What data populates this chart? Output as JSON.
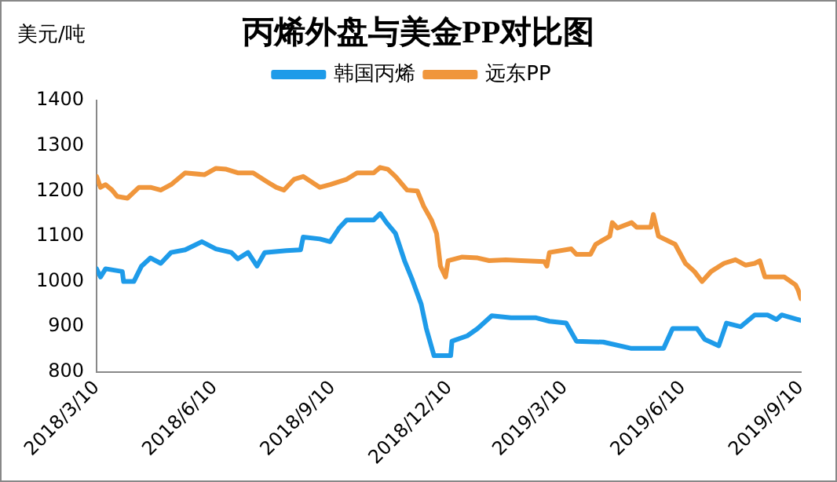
{
  "chart_data": {
    "type": "line",
    "title": "丙烯外盘与美金PP对比图",
    "ylabel": "美元/吨",
    "legend": "top",
    "grid": false,
    "marker": "none",
    "line_style": "solid",
    "xlim": [
      "2018-03-10",
      "2019-09-10"
    ],
    "xticks": [
      {
        "value": "2018-03-10",
        "label": "2018/3/10"
      },
      {
        "value": "2018-06-10",
        "label": "2018/6/10"
      },
      {
        "value": "2018-09-10",
        "label": "2018/9/10"
      },
      {
        "value": "2018-12-10",
        "label": "2018/12/10"
      },
      {
        "value": "2019-03-10",
        "label": "2019/3/10"
      },
      {
        "value": "2019-06-10",
        "label": "2019/6/10"
      },
      {
        "value": "2019-09-10",
        "label": "2019/9/10"
      }
    ],
    "ylim": [
      800,
      1400
    ],
    "yticks": [
      800,
      900,
      1000,
      1100,
      1200,
      1300,
      1400
    ],
    "series": [
      {
        "name": "韩国丙烯",
        "color": "#1e9be9",
        "x": [
          "2018-03-10",
          "2018-03-13",
          "2018-03-17",
          "2018-03-30",
          "2018-03-31",
          "2018-04-08",
          "2018-04-14",
          "2018-04-21",
          "2018-04-29",
          "2018-05-07",
          "2018-05-18",
          "2018-05-31",
          "2018-06-11",
          "2018-06-23",
          "2018-06-28",
          "2018-07-06",
          "2018-07-13",
          "2018-07-19",
          "2018-08-05",
          "2018-08-16",
          "2018-08-18",
          "2018-08-31",
          "2018-09-08",
          "2018-09-15",
          "2018-09-21",
          "2018-10-12",
          "2018-10-17",
          "2018-10-22",
          "2018-10-29",
          "2018-11-05",
          "2018-11-11",
          "2018-11-18",
          "2018-11-22",
          "2018-11-28",
          "2018-12-11",
          "2018-12-12",
          "2018-12-24",
          "2019-01-01",
          "2019-01-12",
          "2019-01-27",
          "2019-02-15",
          "2019-02-26",
          "2019-03-11",
          "2019-03-19",
          "2019-04-09",
          "2019-05-01",
          "2019-05-26",
          "2019-06-02",
          "2019-06-21",
          "2019-06-27",
          "2019-07-08",
          "2019-07-14",
          "2019-07-25",
          "2019-08-05",
          "2019-08-15",
          "2019-08-22",
          "2019-08-26",
          "2019-09-10"
        ],
        "values": [
          1028,
          1010,
          1028,
          1022,
          1000,
          1000,
          1034,
          1052,
          1040,
          1064,
          1070,
          1088,
          1072,
          1064,
          1050,
          1064,
          1034,
          1064,
          1068,
          1070,
          1098,
          1094,
          1088,
          1118,
          1136,
          1136,
          1150,
          1130,
          1106,
          1046,
          1004,
          950,
          896,
          836,
          836,
          868,
          880,
          896,
          924,
          920,
          920,
          912,
          908,
          868,
          866,
          852,
          852,
          896,
          896,
          872,
          858,
          908,
          900,
          926,
          926,
          916,
          926,
          914
        ]
      },
      {
        "name": "远东PP",
        "color": "#f0963c",
        "x": [
          "2018-03-10",
          "2018-03-13",
          "2018-03-17",
          "2018-03-22",
          "2018-03-26",
          "2018-04-03",
          "2018-04-12",
          "2018-04-21",
          "2018-04-29",
          "2018-05-07",
          "2018-05-18",
          "2018-06-02",
          "2018-06-11",
          "2018-06-19",
          "2018-06-28",
          "2018-07-10",
          "2018-07-21",
          "2018-07-28",
          "2018-08-03",
          "2018-08-11",
          "2018-08-18",
          "2018-08-31",
          "2018-09-08",
          "2018-09-21",
          "2018-09-29",
          "2018-10-12",
          "2018-10-17",
          "2018-10-23",
          "2018-10-29",
          "2018-11-07",
          "2018-11-15",
          "2018-11-20",
          "2018-11-26",
          "2018-11-30",
          "2018-12-03",
          "2018-12-07",
          "2018-12-09",
          "2018-12-20",
          "2019-01-01",
          "2019-01-10",
          "2019-01-23",
          "2019-02-04",
          "2019-02-22",
          "2019-02-24",
          "2019-02-26",
          "2019-03-15",
          "2019-03-19",
          "2019-03-30",
          "2019-04-03",
          "2019-04-14",
          "2019-04-16",
          "2019-04-20",
          "2019-05-01",
          "2019-05-05",
          "2019-05-16",
          "2019-05-18",
          "2019-05-22",
          "2019-06-04",
          "2019-06-12",
          "2019-06-19",
          "2019-06-25",
          "2019-07-02",
          "2019-07-12",
          "2019-07-21",
          "2019-07-29",
          "2019-08-05",
          "2019-08-09",
          "2019-08-13",
          "2019-08-28",
          "2019-09-06",
          "2019-09-08",
          "2019-09-10"
        ],
        "values": [
          1232,
          1208,
          1214,
          1202,
          1188,
          1184,
          1208,
          1208,
          1202,
          1214,
          1240,
          1236,
          1250,
          1248,
          1240,
          1240,
          1220,
          1208,
          1202,
          1226,
          1232,
          1208,
          1214,
          1226,
          1240,
          1240,
          1252,
          1248,
          1232,
          1202,
          1200,
          1166,
          1136,
          1106,
          1034,
          1010,
          1046,
          1054,
          1052,
          1046,
          1048,
          1046,
          1044,
          1034,
          1064,
          1072,
          1060,
          1060,
          1082,
          1100,
          1130,
          1118,
          1130,
          1120,
          1120,
          1148,
          1100,
          1082,
          1040,
          1022,
          1000,
          1022,
          1040,
          1048,
          1036,
          1040,
          1046,
          1010,
          1010,
          992,
          980,
          962
        ]
      }
    ]
  }
}
